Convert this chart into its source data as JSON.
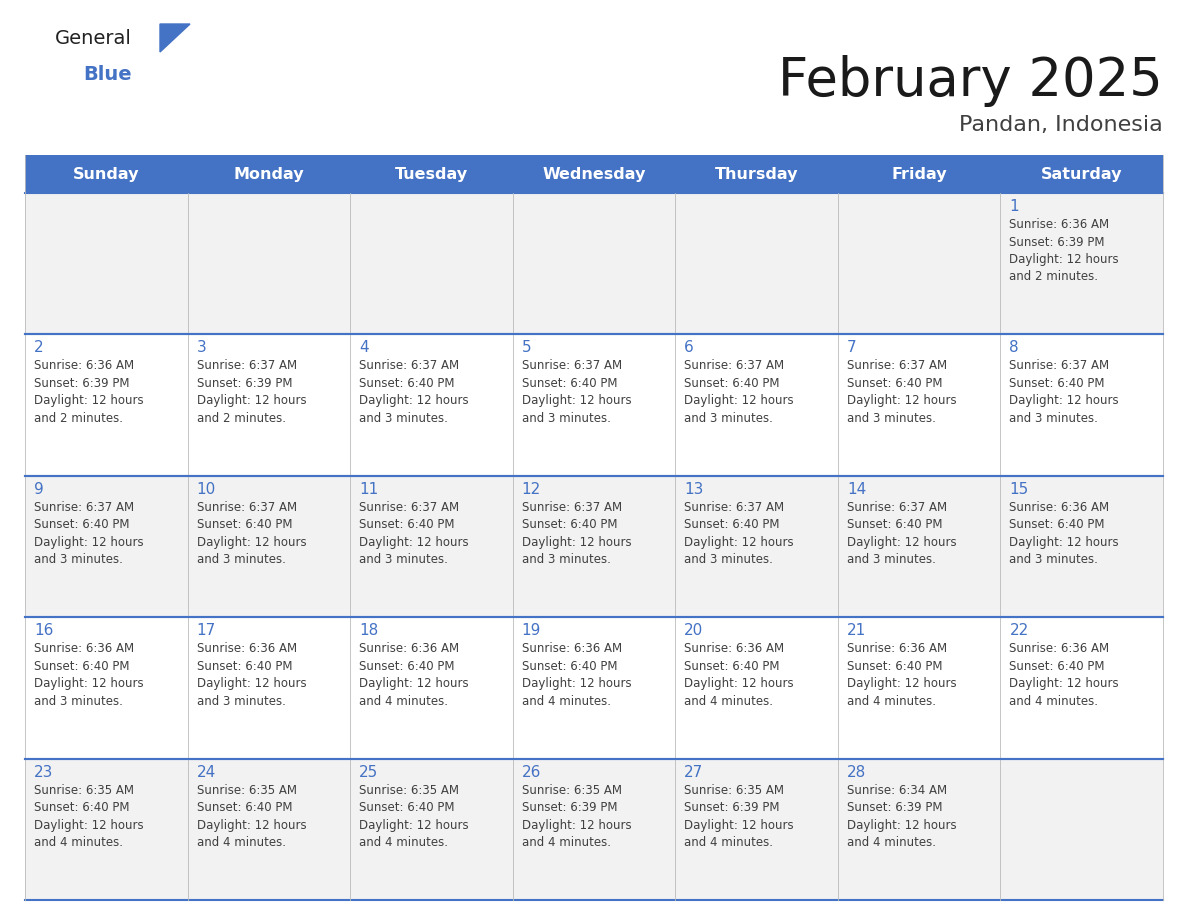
{
  "title": "February 2025",
  "subtitle": "Pandan, Indonesia",
  "header_bg": "#4472C4",
  "header_text_color": "#FFFFFF",
  "weekdays": [
    "Sunday",
    "Monday",
    "Tuesday",
    "Wednesday",
    "Thursday",
    "Friday",
    "Saturday"
  ],
  "row_odd_bg": "#F2F2F2",
  "row_even_bg": "#FFFFFF",
  "border_color": "#4472C4",
  "day_num_color": "#4472C4",
  "text_color": "#404040",
  "calendar": [
    [
      null,
      null,
      null,
      null,
      null,
      null,
      {
        "day": 1,
        "sunrise": "6:36 AM",
        "sunset": "6:39 PM",
        "daylight": "12 hours",
        "daylight2": "and 2 minutes."
      }
    ],
    [
      {
        "day": 2,
        "sunrise": "6:36 AM",
        "sunset": "6:39 PM",
        "daylight": "12 hours",
        "daylight2": "and 2 minutes."
      },
      {
        "day": 3,
        "sunrise": "6:37 AM",
        "sunset": "6:39 PM",
        "daylight": "12 hours",
        "daylight2": "and 2 minutes."
      },
      {
        "day": 4,
        "sunrise": "6:37 AM",
        "sunset": "6:40 PM",
        "daylight": "12 hours",
        "daylight2": "and 3 minutes."
      },
      {
        "day": 5,
        "sunrise": "6:37 AM",
        "sunset": "6:40 PM",
        "daylight": "12 hours",
        "daylight2": "and 3 minutes."
      },
      {
        "day": 6,
        "sunrise": "6:37 AM",
        "sunset": "6:40 PM",
        "daylight": "12 hours",
        "daylight2": "and 3 minutes."
      },
      {
        "day": 7,
        "sunrise": "6:37 AM",
        "sunset": "6:40 PM",
        "daylight": "12 hours",
        "daylight2": "and 3 minutes."
      },
      {
        "day": 8,
        "sunrise": "6:37 AM",
        "sunset": "6:40 PM",
        "daylight": "12 hours",
        "daylight2": "and 3 minutes."
      }
    ],
    [
      {
        "day": 9,
        "sunrise": "6:37 AM",
        "sunset": "6:40 PM",
        "daylight": "12 hours",
        "daylight2": "and 3 minutes."
      },
      {
        "day": 10,
        "sunrise": "6:37 AM",
        "sunset": "6:40 PM",
        "daylight": "12 hours",
        "daylight2": "and 3 minutes."
      },
      {
        "day": 11,
        "sunrise": "6:37 AM",
        "sunset": "6:40 PM",
        "daylight": "12 hours",
        "daylight2": "and 3 minutes."
      },
      {
        "day": 12,
        "sunrise": "6:37 AM",
        "sunset": "6:40 PM",
        "daylight": "12 hours",
        "daylight2": "and 3 minutes."
      },
      {
        "day": 13,
        "sunrise": "6:37 AM",
        "sunset": "6:40 PM",
        "daylight": "12 hours",
        "daylight2": "and 3 minutes."
      },
      {
        "day": 14,
        "sunrise": "6:37 AM",
        "sunset": "6:40 PM",
        "daylight": "12 hours",
        "daylight2": "and 3 minutes."
      },
      {
        "day": 15,
        "sunrise": "6:36 AM",
        "sunset": "6:40 PM",
        "daylight": "12 hours",
        "daylight2": "and 3 minutes."
      }
    ],
    [
      {
        "day": 16,
        "sunrise": "6:36 AM",
        "sunset": "6:40 PM",
        "daylight": "12 hours",
        "daylight2": "and 3 minutes."
      },
      {
        "day": 17,
        "sunrise": "6:36 AM",
        "sunset": "6:40 PM",
        "daylight": "12 hours",
        "daylight2": "and 3 minutes."
      },
      {
        "day": 18,
        "sunrise": "6:36 AM",
        "sunset": "6:40 PM",
        "daylight": "12 hours",
        "daylight2": "and 4 minutes."
      },
      {
        "day": 19,
        "sunrise": "6:36 AM",
        "sunset": "6:40 PM",
        "daylight": "12 hours",
        "daylight2": "and 4 minutes."
      },
      {
        "day": 20,
        "sunrise": "6:36 AM",
        "sunset": "6:40 PM",
        "daylight": "12 hours",
        "daylight2": "and 4 minutes."
      },
      {
        "day": 21,
        "sunrise": "6:36 AM",
        "sunset": "6:40 PM",
        "daylight": "12 hours",
        "daylight2": "and 4 minutes."
      },
      {
        "day": 22,
        "sunrise": "6:36 AM",
        "sunset": "6:40 PM",
        "daylight": "12 hours",
        "daylight2": "and 4 minutes."
      }
    ],
    [
      {
        "day": 23,
        "sunrise": "6:35 AM",
        "sunset": "6:40 PM",
        "daylight": "12 hours",
        "daylight2": "and 4 minutes."
      },
      {
        "day": 24,
        "sunrise": "6:35 AM",
        "sunset": "6:40 PM",
        "daylight": "12 hours",
        "daylight2": "and 4 minutes."
      },
      {
        "day": 25,
        "sunrise": "6:35 AM",
        "sunset": "6:40 PM",
        "daylight": "12 hours",
        "daylight2": "and 4 minutes."
      },
      {
        "day": 26,
        "sunrise": "6:35 AM",
        "sunset": "6:39 PM",
        "daylight": "12 hours",
        "daylight2": "and 4 minutes."
      },
      {
        "day": 27,
        "sunrise": "6:35 AM",
        "sunset": "6:39 PM",
        "daylight": "12 hours",
        "daylight2": "and 4 minutes."
      },
      {
        "day": 28,
        "sunrise": "6:34 AM",
        "sunset": "6:39 PM",
        "daylight": "12 hours",
        "daylight2": "and 4 minutes."
      },
      null
    ]
  ],
  "logo_text_general": "General",
  "logo_text_blue": "Blue",
  "logo_color_general": "#222222",
  "logo_color_blue": "#4472C4",
  "fig_width": 11.88,
  "fig_height": 9.18,
  "dpi": 100
}
